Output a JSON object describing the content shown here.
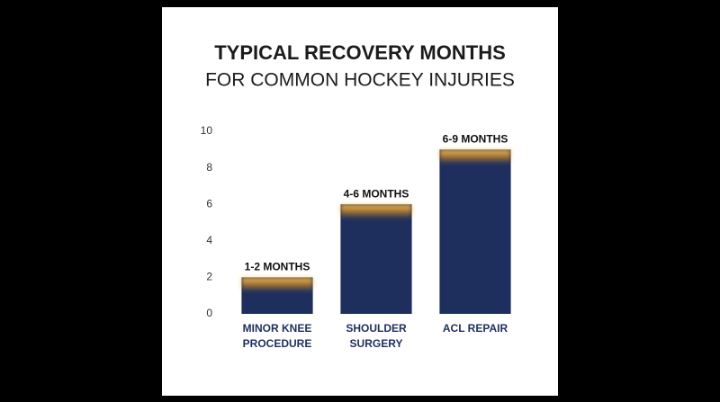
{
  "chart_data": {
    "type": "bar",
    "title": "TYPICAL RECOVERY MONTHS",
    "subtitle": "FOR COMMON HOCKEY INJURIES",
    "categories": [
      [
        "MINOR KNEE",
        "PROCEDURE"
      ],
      [
        "SHOULDER",
        "SURGERY"
      ],
      [
        "ACL REPAIR"
      ]
    ],
    "values": [
      2,
      6,
      9
    ],
    "value_labels": [
      "1-2 MONTHS",
      "4-6 MONTHS",
      "6-9 MONTHS"
    ],
    "color": "#1e2f5e",
    "glow_color": "#f7a21b",
    "ylim": [
      0,
      10
    ],
    "yticks": [
      0,
      2,
      4,
      6,
      8,
      10
    ],
    "grid": false
  }
}
